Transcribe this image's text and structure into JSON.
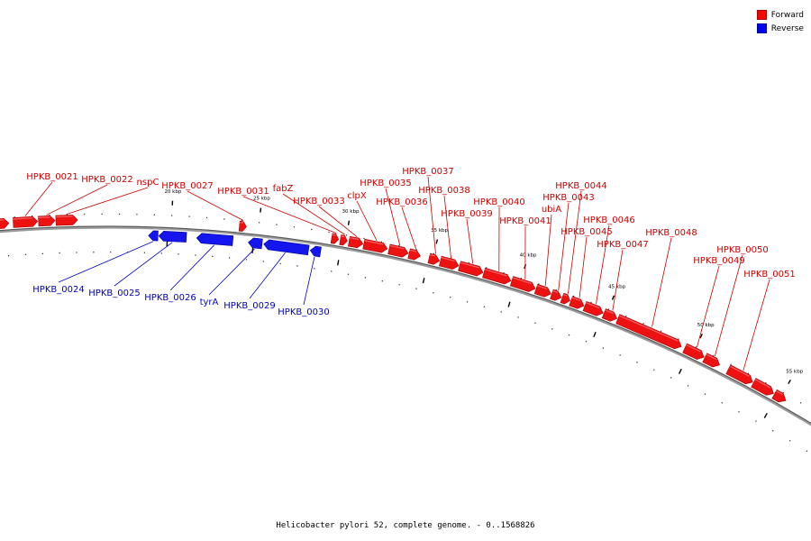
{
  "legend": {
    "forward": {
      "label": "Forward",
      "color": "#ff0000"
    },
    "reverse": {
      "label": "Reverse",
      "color": "#0000ff"
    }
  },
  "caption": "Helicobacter pylori 52, complete genome. - 0..1568826",
  "colors": {
    "forward": "#ee1111",
    "forward_edge": "#aa0000",
    "reverse": "#1515ee",
    "reverse_edge": "#000099",
    "backbone": "#888888",
    "label_forward": "#cc0000",
    "label_reverse": "#0000bb"
  },
  "chart_data": {
    "type": "genome-map",
    "units": "kbp",
    "visible_range_kbp": [
      10.0,
      58.0
    ],
    "scale_labels": [
      {
        "kbp": 20,
        "label": "20 kbp"
      },
      {
        "kbp": 25,
        "label": "25 kbp"
      },
      {
        "kbp": 30,
        "label": "30 kbp"
      },
      {
        "kbp": 35,
        "label": "35 kbp"
      },
      {
        "kbp": 40,
        "label": "40 kbp"
      },
      {
        "kbp": 45,
        "label": "45 kbp"
      },
      {
        "kbp": 50,
        "label": "50 kbp"
      },
      {
        "kbp": 55,
        "label": "55 kbp"
      }
    ],
    "features": [
      {
        "name": "",
        "strand": "forward",
        "start": 10.0,
        "end": 10.65
      },
      {
        "name": "HPKB_0021",
        "strand": "forward",
        "start": 10.9,
        "end": 12.3
      },
      {
        "name": "HPKB_0022",
        "strand": "forward",
        "start": 12.35,
        "end": 13.3
      },
      {
        "name": "nspC",
        "strand": "forward",
        "start": 13.35,
        "end": 14.6
      },
      {
        "name": "HPKB_0024",
        "strand": "reverse",
        "start": 18.7,
        "end": 19.25
      },
      {
        "name": "HPKB_0025",
        "strand": "reverse",
        "start": 19.3,
        "end": 20.9
      },
      {
        "name": "HPKB_0026",
        "strand": "reverse",
        "start": 21.5,
        "end": 23.6
      },
      {
        "name": "HPKB_0027",
        "strand": "forward",
        "start": 23.9,
        "end": 24.3
      },
      {
        "name": "tyrA",
        "strand": "reverse",
        "start": 24.5,
        "end": 25.3
      },
      {
        "name": "HPKB_0029",
        "strand": "reverse",
        "start": 25.4,
        "end": 28.0
      },
      {
        "name": "HPKB_0030",
        "strand": "reverse",
        "start": 28.1,
        "end": 28.7
      },
      {
        "name": "HPKB_0031",
        "strand": "forward",
        "start": 29.2,
        "end": 29.6
      },
      {
        "name": "fabZ",
        "strand": "forward",
        "start": 29.7,
        "end": 30.1
      },
      {
        "name": "HPKB_0033",
        "strand": "forward",
        "start": 30.2,
        "end": 31.0
      },
      {
        "name": "clpX",
        "strand": "forward",
        "start": 31.05,
        "end": 32.4
      },
      {
        "name": "HPKB_0035",
        "strand": "forward",
        "start": 32.5,
        "end": 33.6
      },
      {
        "name": "HPKB_0036",
        "strand": "forward",
        "start": 33.65,
        "end": 34.3
      },
      {
        "name": "HPKB_0037",
        "strand": "forward",
        "start": 34.8,
        "end": 35.4
      },
      {
        "name": "HPKB_0038",
        "strand": "forward",
        "start": 35.45,
        "end": 36.5
      },
      {
        "name": "HPKB_0039",
        "strand": "forward",
        "start": 36.55,
        "end": 37.9
      },
      {
        "name": "HPKB_0040",
        "strand": "forward",
        "start": 37.95,
        "end": 39.5
      },
      {
        "name": "HPKB_0041",
        "strand": "forward",
        "start": 39.55,
        "end": 40.9
      },
      {
        "name": "ubiA",
        "strand": "forward",
        "start": 40.95,
        "end": 41.8
      },
      {
        "name": "HPKB_0043",
        "strand": "forward",
        "start": 41.85,
        "end": 42.4
      },
      {
        "name": "HPKB_0044",
        "strand": "forward",
        "start": 42.45,
        "end": 42.9
      },
      {
        "name": "HPKB_0045",
        "strand": "forward",
        "start": 42.95,
        "end": 43.7
      },
      {
        "name": "HPKB_0046",
        "strand": "forward",
        "start": 43.75,
        "end": 44.8
      },
      {
        "name": "HPKB_0047",
        "strand": "forward",
        "start": 44.85,
        "end": 45.6
      },
      {
        "name": "HPKB_0048",
        "strand": "forward",
        "start": 45.65,
        "end": 49.3
      },
      {
        "name": "HPKB_0049",
        "strand": "forward",
        "start": 49.5,
        "end": 50.6
      },
      {
        "name": "HPKB_0050",
        "strand": "forward",
        "start": 50.65,
        "end": 51.5
      },
      {
        "name": "HPKB_0051",
        "strand": "forward",
        "start": 52.0,
        "end": 53.4
      },
      {
        "name": "",
        "strand": "forward",
        "start": 53.45,
        "end": 54.6
      },
      {
        "name": "",
        "strand": "forward",
        "start": 54.65,
        "end": 55.3
      }
    ]
  }
}
